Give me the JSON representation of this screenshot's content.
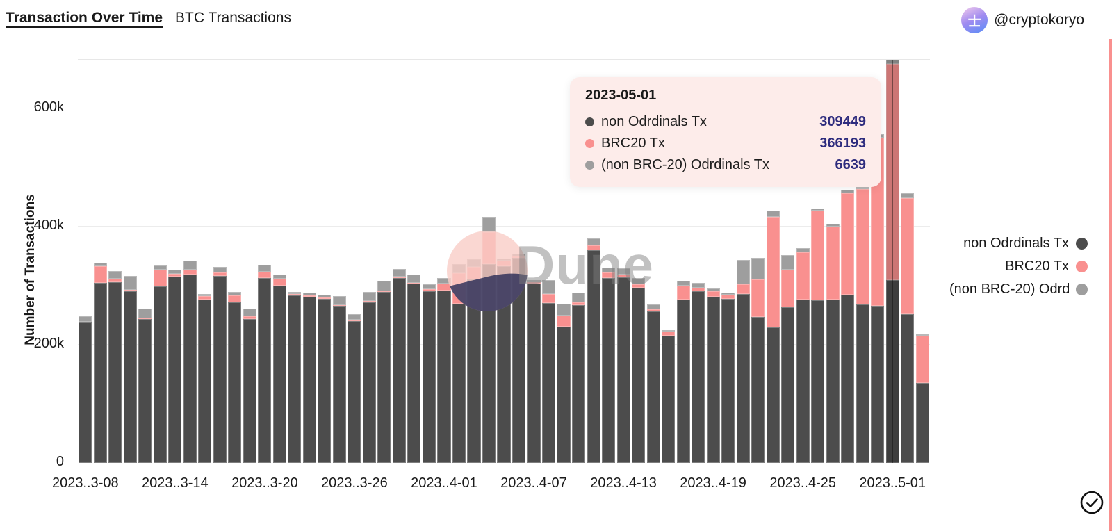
{
  "header": {
    "title": "Transaction Over Time",
    "subtitle": "BTC Transactions",
    "author": "@cryptokoryo",
    "avatar_glyph": "士"
  },
  "chart_data": {
    "type": "bar",
    "stacked": true,
    "ylabel": "Number of Transactions",
    "ylim": [
      0,
      690000
    ],
    "grid": "horizontal",
    "legend_position": "right",
    "yticks": [
      {
        "label": "0",
        "value": 0
      },
      {
        "label": "200k",
        "value": 200000
      },
      {
        "label": "400k",
        "value": 400000
      },
      {
        "label": "600k",
        "value": 600000
      }
    ],
    "dates": [
      "2023-03-08",
      "2023-03-09",
      "2023-03-10",
      "2023-03-11",
      "2023-03-12",
      "2023-03-13",
      "2023-03-14",
      "2023-03-15",
      "2023-03-16",
      "2023-03-17",
      "2023-03-18",
      "2023-03-19",
      "2023-03-20",
      "2023-03-21",
      "2023-03-22",
      "2023-03-23",
      "2023-03-24",
      "2023-03-25",
      "2023-03-26",
      "2023-03-27",
      "2023-03-28",
      "2023-03-29",
      "2023-03-30",
      "2023-03-31",
      "2023-04-01",
      "2023-04-02",
      "2023-04-03",
      "2023-04-04",
      "2023-04-05",
      "2023-04-06",
      "2023-04-07",
      "2023-04-08",
      "2023-04-09",
      "2023-04-10",
      "2023-04-11",
      "2023-04-12",
      "2023-04-13",
      "2023-04-14",
      "2023-04-15",
      "2023-04-16",
      "2023-04-17",
      "2023-04-18",
      "2023-04-19",
      "2023-04-20",
      "2023-04-21",
      "2023-04-22",
      "2023-04-23",
      "2023-04-24",
      "2023-04-25",
      "2023-04-26",
      "2023-04-27",
      "2023-04-28",
      "2023-04-29",
      "2023-04-30",
      "2023-05-01",
      "2023-05-02",
      "2023-05-03"
    ],
    "x_tick_indices": [
      0,
      6,
      12,
      18,
      24,
      30,
      36,
      42,
      48,
      54
    ],
    "x_tick_labels": [
      "2023..3-08",
      "2023..3-14",
      "2023..3-20",
      "2023..3-26",
      "2023..4-01",
      "2023..4-07",
      "2023..4-13",
      "2023..4-19",
      "2023..4-25",
      "2023..5-01"
    ],
    "series": [
      {
        "name": "non Odrdinals Tx",
        "color": "#4c4c4c",
        "values": [
          238000,
          305000,
          306000,
          291000,
          243000,
          299000,
          315000,
          319000,
          277000,
          317000,
          272000,
          243000,
          313000,
          300000,
          284000,
          281000,
          278000,
          266000,
          240000,
          272000,
          289000,
          313000,
          303000,
          291000,
          292000,
          270000,
          310000,
          337000,
          333000,
          347000,
          304000,
          271000,
          230000,
          267000,
          360000,
          313000,
          314000,
          296000,
          257000,
          215000,
          276000,
          290000,
          281000,
          278000,
          286000,
          247000,
          229000,
          263000,
          276000,
          275000,
          276000,
          285000,
          268000,
          266000,
          309449,
          252000,
          135000
        ]
      },
      {
        "name": "BRC20 Tx",
        "color": "#f9908f",
        "values": [
          1000,
          28000,
          6000,
          2000,
          2000,
          28000,
          5000,
          8000,
          5000,
          5000,
          12000,
          5000,
          11000,
          12000,
          2000,
          2000,
          2000,
          1000,
          2000,
          2000,
          2000,
          2000,
          2000,
          3000,
          11000,
          51000,
          22000,
          54000,
          9000,
          2000,
          2000,
          15000,
          19000,
          5000,
          8000,
          9000,
          5000,
          6000,
          3000,
          7000,
          24000,
          6000,
          10000,
          7000,
          16000,
          64000,
          187000,
          64000,
          80000,
          152000,
          124000,
          172000,
          195000,
          285000,
          366193,
          196000,
          80000
        ]
      },
      {
        "name": "(non BRC-20) Odrdinals Tx",
        "color": "#9e9e9e",
        "values": [
          9000,
          6000,
          13000,
          24000,
          16000,
          7000,
          7000,
          15000,
          4000,
          10000,
          5000,
          13000,
          11000,
          7000,
          4000,
          5000,
          5000,
          15000,
          10000,
          15000,
          17000,
          13000,
          14000,
          8000,
          10000,
          15000,
          13000,
          26000,
          4000,
          5000,
          4000,
          24000,
          21000,
          16000,
          12000,
          9000,
          10000,
          11000,
          8000,
          3000,
          8000,
          9000,
          4000,
          3000,
          42000,
          36000,
          11000,
          25000,
          7000,
          4000,
          5000,
          5000,
          4000,
          6000,
          6639,
          8000,
          3000
        ]
      }
    ],
    "hovered_index": 54
  },
  "tooltip": {
    "title": "2023-05-01",
    "rows": [
      {
        "label": "non Odrdinals Tx",
        "value": "309449",
        "color": "#4c4c4c"
      },
      {
        "label": "BRC20 Tx",
        "value": "366193",
        "color": "#f9908f"
      },
      {
        "label": "(non BRC-20) Odrdinals Tx",
        "value": "6639",
        "color": "#9e9e9e"
      }
    ]
  },
  "legend": {
    "items": [
      {
        "label": "non Odrdinals Tx",
        "color": "#4c4c4c",
        "truncated": false
      },
      {
        "label": "BRC20 Tx",
        "color": "#f9908f",
        "truncated": false
      },
      {
        "label": "(non BRC-20) Odrdinals Tx",
        "color": "#9e9e9e",
        "truncated": true
      }
    ]
  },
  "watermark": {
    "text": "Dune"
  },
  "colors": {
    "tooltip_bg": "#fdecea",
    "tooltip_value_text": "#2e2c7e",
    "grid": "#ececec",
    "right_accent": "#f9908f",
    "hover_overlay": "rgba(20,20,20,0.35)"
  }
}
